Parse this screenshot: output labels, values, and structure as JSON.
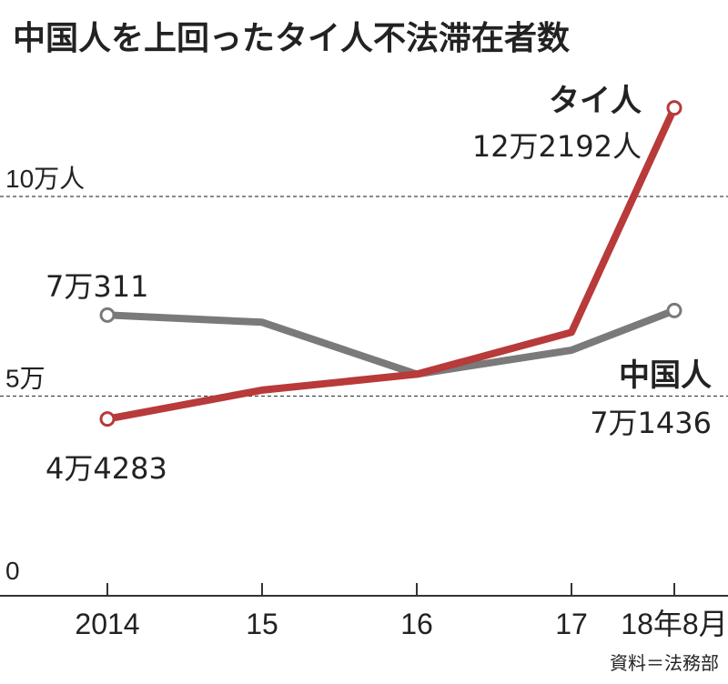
{
  "source": "資料＝法務部",
  "chart_data": {
    "type": "line",
    "title": "中国人を上回ったタイ人不法滞在者数",
    "categories": [
      "2014",
      "15",
      "16",
      "17",
      "18年8月"
    ],
    "ylim": [
      0,
      130000
    ],
    "yticks": [
      {
        "value": 0,
        "label": "0"
      },
      {
        "value": 50000,
        "label": "5万"
      },
      {
        "value": 100000,
        "label": "10万人"
      }
    ],
    "grid": "dashed horizontal at 5万 and 10万",
    "series": [
      {
        "name": "中国人",
        "color": "#7a7a7a",
        "values": [
          70311,
          68500,
          55500,
          61500,
          71436
        ],
        "labels": [
          {
            "index": 0,
            "text": "7万311"
          },
          {
            "index": 4,
            "text": "7万1436"
          }
        ]
      },
      {
        "name": "タイ人",
        "color": "#b83a3a",
        "values": [
          44283,
          51500,
          55500,
          66000,
          122192
        ],
        "labels": [
          {
            "index": 0,
            "text": "4万4283"
          },
          {
            "index": 4,
            "text": "12万2192人"
          }
        ]
      }
    ]
  }
}
